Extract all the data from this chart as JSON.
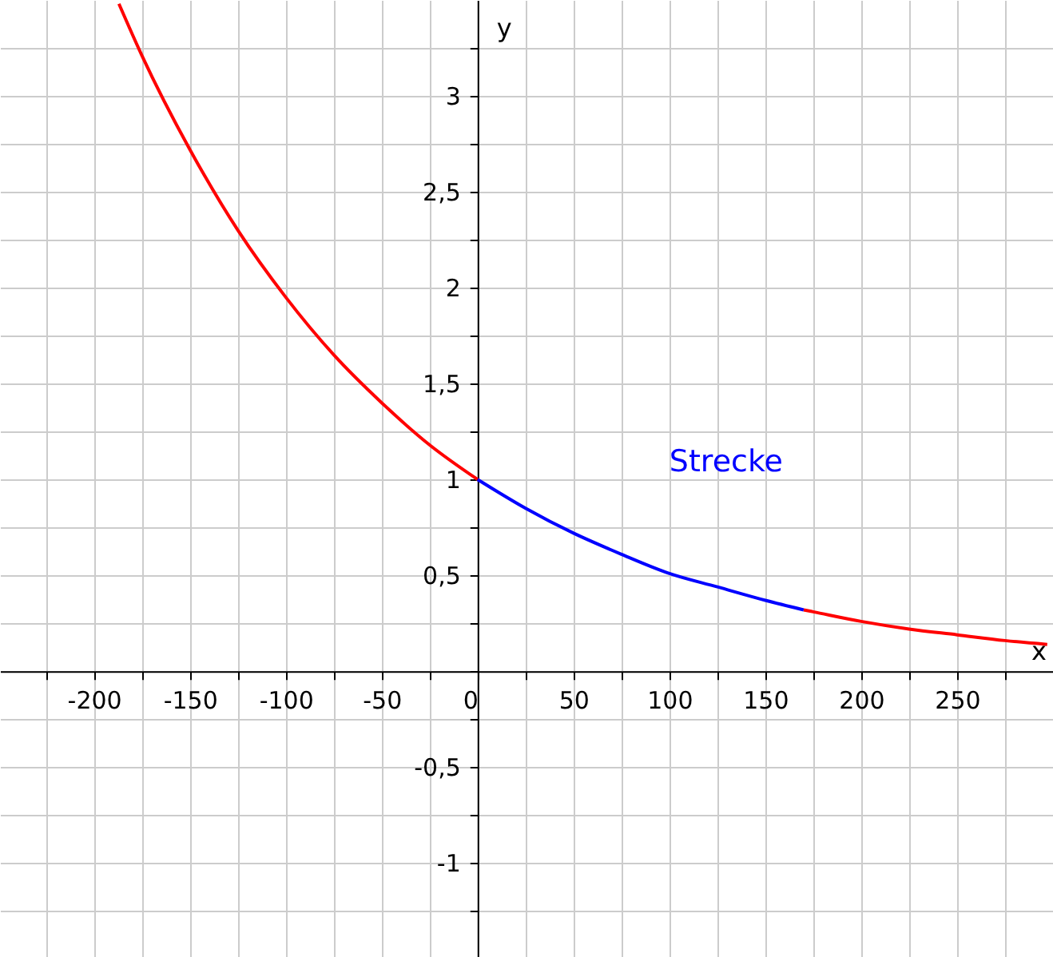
{
  "chart_data": {
    "type": "line",
    "xlabel": "x",
    "ylabel": "y",
    "xlim": [
      -249,
      300
    ],
    "ylim": [
      -1.49,
      3.5
    ],
    "xticks": [
      {
        "value": -225,
        "label": null
      },
      -200,
      {
        "value": -175,
        "label": null
      },
      -150,
      {
        "value": -125,
        "label": null
      },
      -100,
      {
        "value": -75,
        "label": null
      },
      -50,
      {
        "value": -25,
        "label": null
      },
      0,
      {
        "value": 25,
        "label": null
      },
      50,
      {
        "value": 75,
        "label": null
      },
      100,
      {
        "value": 125,
        "label": null
      },
      150,
      {
        "value": 175,
        "label": null
      },
      200,
      {
        "value": 225,
        "label": null
      },
      250,
      {
        "value": 275,
        "label": null
      }
    ],
    "yticks": [
      {
        "value": -1.25,
        "label": null
      },
      {
        "value": -1,
        "label": "-1"
      },
      {
        "value": -0.75,
        "label": null
      },
      {
        "value": -0.5,
        "label": "-0,5"
      },
      {
        "value": -0.25,
        "label": null
      },
      {
        "value": 0,
        "label": null
      },
      {
        "value": 0.25,
        "label": null
      },
      {
        "value": 0.5,
        "label": "0,5"
      },
      {
        "value": 0.75,
        "label": null
      },
      {
        "value": 1,
        "label": "1"
      },
      {
        "value": 1.25,
        "label": null
      },
      {
        "value": 1.5,
        "label": "1,5"
      },
      {
        "value": 1.75,
        "label": null
      },
      {
        "value": 2,
        "label": "2"
      },
      {
        "value": 2.25,
        "label": null
      },
      {
        "value": 2.5,
        "label": "2,5"
      },
      {
        "value": 2.75,
        "label": null
      },
      {
        "value": 3,
        "label": "3"
      },
      {
        "value": 3.25,
        "label": null
      }
    ],
    "grid": true,
    "series": [
      {
        "color": "#ff0000",
        "x": [
          -187,
          -175,
          -150,
          -125,
          -100,
          -75,
          -50,
          -25,
          0,
          25,
          50,
          75,
          100,
          125,
          150,
          170,
          175,
          200,
          225,
          250,
          275,
          297
        ],
        "values": [
          3.48,
          3.21,
          2.72,
          2.3,
          1.95,
          1.65,
          1.4,
          1.18,
          1.0,
          null,
          null,
          null,
          null,
          null,
          null,
          0.32,
          0.31,
          0.26,
          0.22,
          0.19,
          0.16,
          0.14
        ]
      },
      {
        "name": "Strecke",
        "color": "#0000ff",
        "x": [
          0,
          25,
          50,
          75,
          100,
          125,
          150,
          170
        ],
        "values": [
          1.0,
          0.85,
          0.72,
          0.61,
          0.51,
          0.44,
          0.37,
          0.32
        ]
      }
    ]
  }
}
